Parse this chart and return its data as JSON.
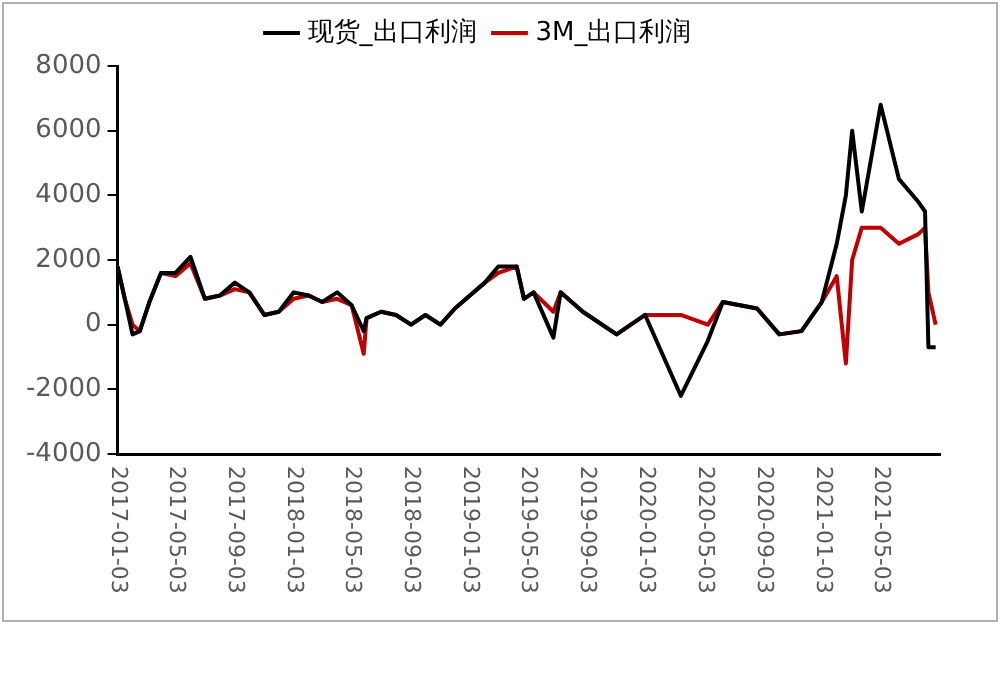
{
  "chart_data": {
    "type": "line",
    "legend": "top",
    "grid": false,
    "x": [
      "2017-01-03",
      "2017-01-18",
      "2017-02-03",
      "2017-02-18",
      "2017-03-10",
      "2017-04-03",
      "2017-05-03",
      "2017-06-03",
      "2017-07-03",
      "2017-08-03",
      "2017-09-03",
      "2017-10-03",
      "2017-11-03",
      "2017-12-03",
      "2018-01-03",
      "2018-02-03",
      "2018-03-03",
      "2018-04-03",
      "2018-05-03",
      "2018-05-28",
      "2018-06-03",
      "2018-07-03",
      "2018-08-03",
      "2018-09-03",
      "2018-10-03",
      "2018-11-03",
      "2018-12-03",
      "2019-01-03",
      "2019-02-03",
      "2019-03-03",
      "2019-04-10",
      "2019-04-25",
      "2019-05-15",
      "2019-06-25",
      "2019-07-10",
      "2019-08-25",
      "2019-11-03",
      "2020-01-01",
      "2020-03-15",
      "2020-05-10",
      "2020-06-10",
      "2020-08-20",
      "2020-10-05",
      "2020-11-20",
      "2021-01-01",
      "2021-02-01",
      "2021-02-20",
      "2021-03-05",
      "2021-03-25",
      "2021-05-03",
      "2021-06-10",
      "2021-07-20",
      "2021-08-03",
      "2021-08-10",
      "2021-08-25"
    ],
    "series": [
      {
        "name": "现货_出口利润",
        "color": "#000000",
        "values": [
          1800,
          800,
          -300,
          -200,
          700,
          1600,
          1600,
          2100,
          800,
          900,
          1300,
          1000,
          300,
          400,
          1000,
          900,
          700,
          1000,
          600,
          -200,
          200,
          400,
          300,
          0,
          300,
          0,
          500,
          900,
          1300,
          1800,
          1800,
          800,
          1000,
          -400,
          1000,
          400,
          -300,
          300,
          -2200,
          -500,
          700,
          500,
          -300,
          -200,
          700,
          2500,
          4000,
          6000,
          3500,
          6800,
          4500,
          3800,
          3500,
          -700,
          -700
        ]
      },
      {
        "name": "3M_出口利润",
        "color": "#c00000",
        "values": [
          1800,
          800,
          0,
          -200,
          700,
          1600,
          1500,
          1900,
          800,
          900,
          1100,
          1000,
          300,
          400,
          800,
          900,
          700,
          800,
          600,
          -900,
          200,
          400,
          300,
          0,
          300,
          0,
          500,
          900,
          1300,
          1600,
          1800,
          800,
          1000,
          400,
          1000,
          400,
          -300,
          300,
          300,
          0,
          700,
          500,
          -300,
          -200,
          700,
          1500,
          -1200,
          2000,
          3000,
          3000,
          2500,
          2800,
          3000,
          1000,
          0
        ]
      }
    ],
    "xlim": [
      "2017-01-03",
      "2021-09-03"
    ],
    "xticks": [
      "2017-01-03",
      "2017-05-03",
      "2017-09-03",
      "2018-01-03",
      "2018-05-03",
      "2018-09-03",
      "2019-01-03",
      "2019-05-03",
      "2019-09-03",
      "2020-01-03",
      "2020-05-03",
      "2020-09-03",
      "2021-01-03",
      "2021-05-03"
    ],
    "ylim": [
      -4000,
      8000
    ],
    "yticks": [
      -4000,
      -2000,
      0,
      2000,
      4000,
      6000,
      8000
    ]
  }
}
